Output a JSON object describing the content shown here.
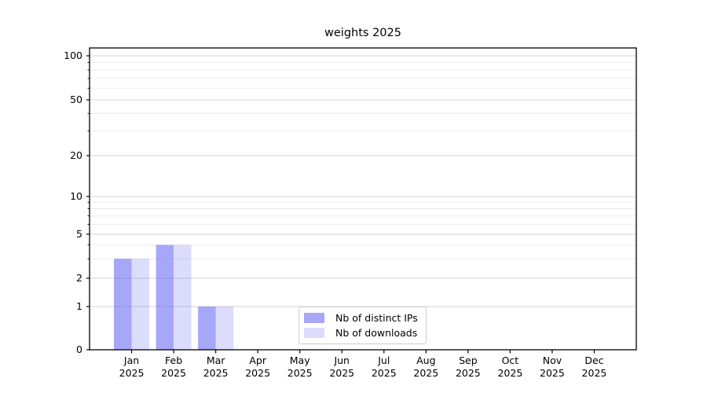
{
  "chart_data": {
    "type": "bar",
    "title": "weights 2025",
    "categories": [
      "Jan",
      "Feb",
      "Mar",
      "Apr",
      "May",
      "Jun",
      "Jul",
      "Aug",
      "Sep",
      "Oct",
      "Nov",
      "Dec"
    ],
    "category_year": "2025",
    "series": [
      {
        "name": "Nb of distinct IPs",
        "color": "rgba(94,94,244,0.55)",
        "values": [
          3,
          4,
          1,
          0,
          0,
          0,
          0,
          0,
          0,
          0,
          0,
          0
        ]
      },
      {
        "name": "Nb of downloads",
        "color": "rgba(94,94,244,0.22)",
        "values": [
          3,
          4,
          1,
          0,
          0,
          0,
          0,
          0,
          0,
          0,
          0,
          0
        ]
      }
    ],
    "xlabel": "",
    "ylabel": "",
    "yscale": "symlog",
    "ylim": [
      0,
      114
    ],
    "yticks": [
      0,
      1,
      2,
      5,
      10,
      20,
      50,
      100
    ],
    "yminorticks": [
      3,
      4,
      6,
      7,
      8,
      9,
      30,
      40,
      60,
      70,
      80,
      90
    ],
    "grid": true,
    "legend_position": "lower center"
  },
  "colors": {
    "grid_major": "#d4d4d4",
    "grid_minor": "#ebebeb",
    "spine": "#000000",
    "tick_text": "#000000",
    "background": "#ffffff"
  }
}
